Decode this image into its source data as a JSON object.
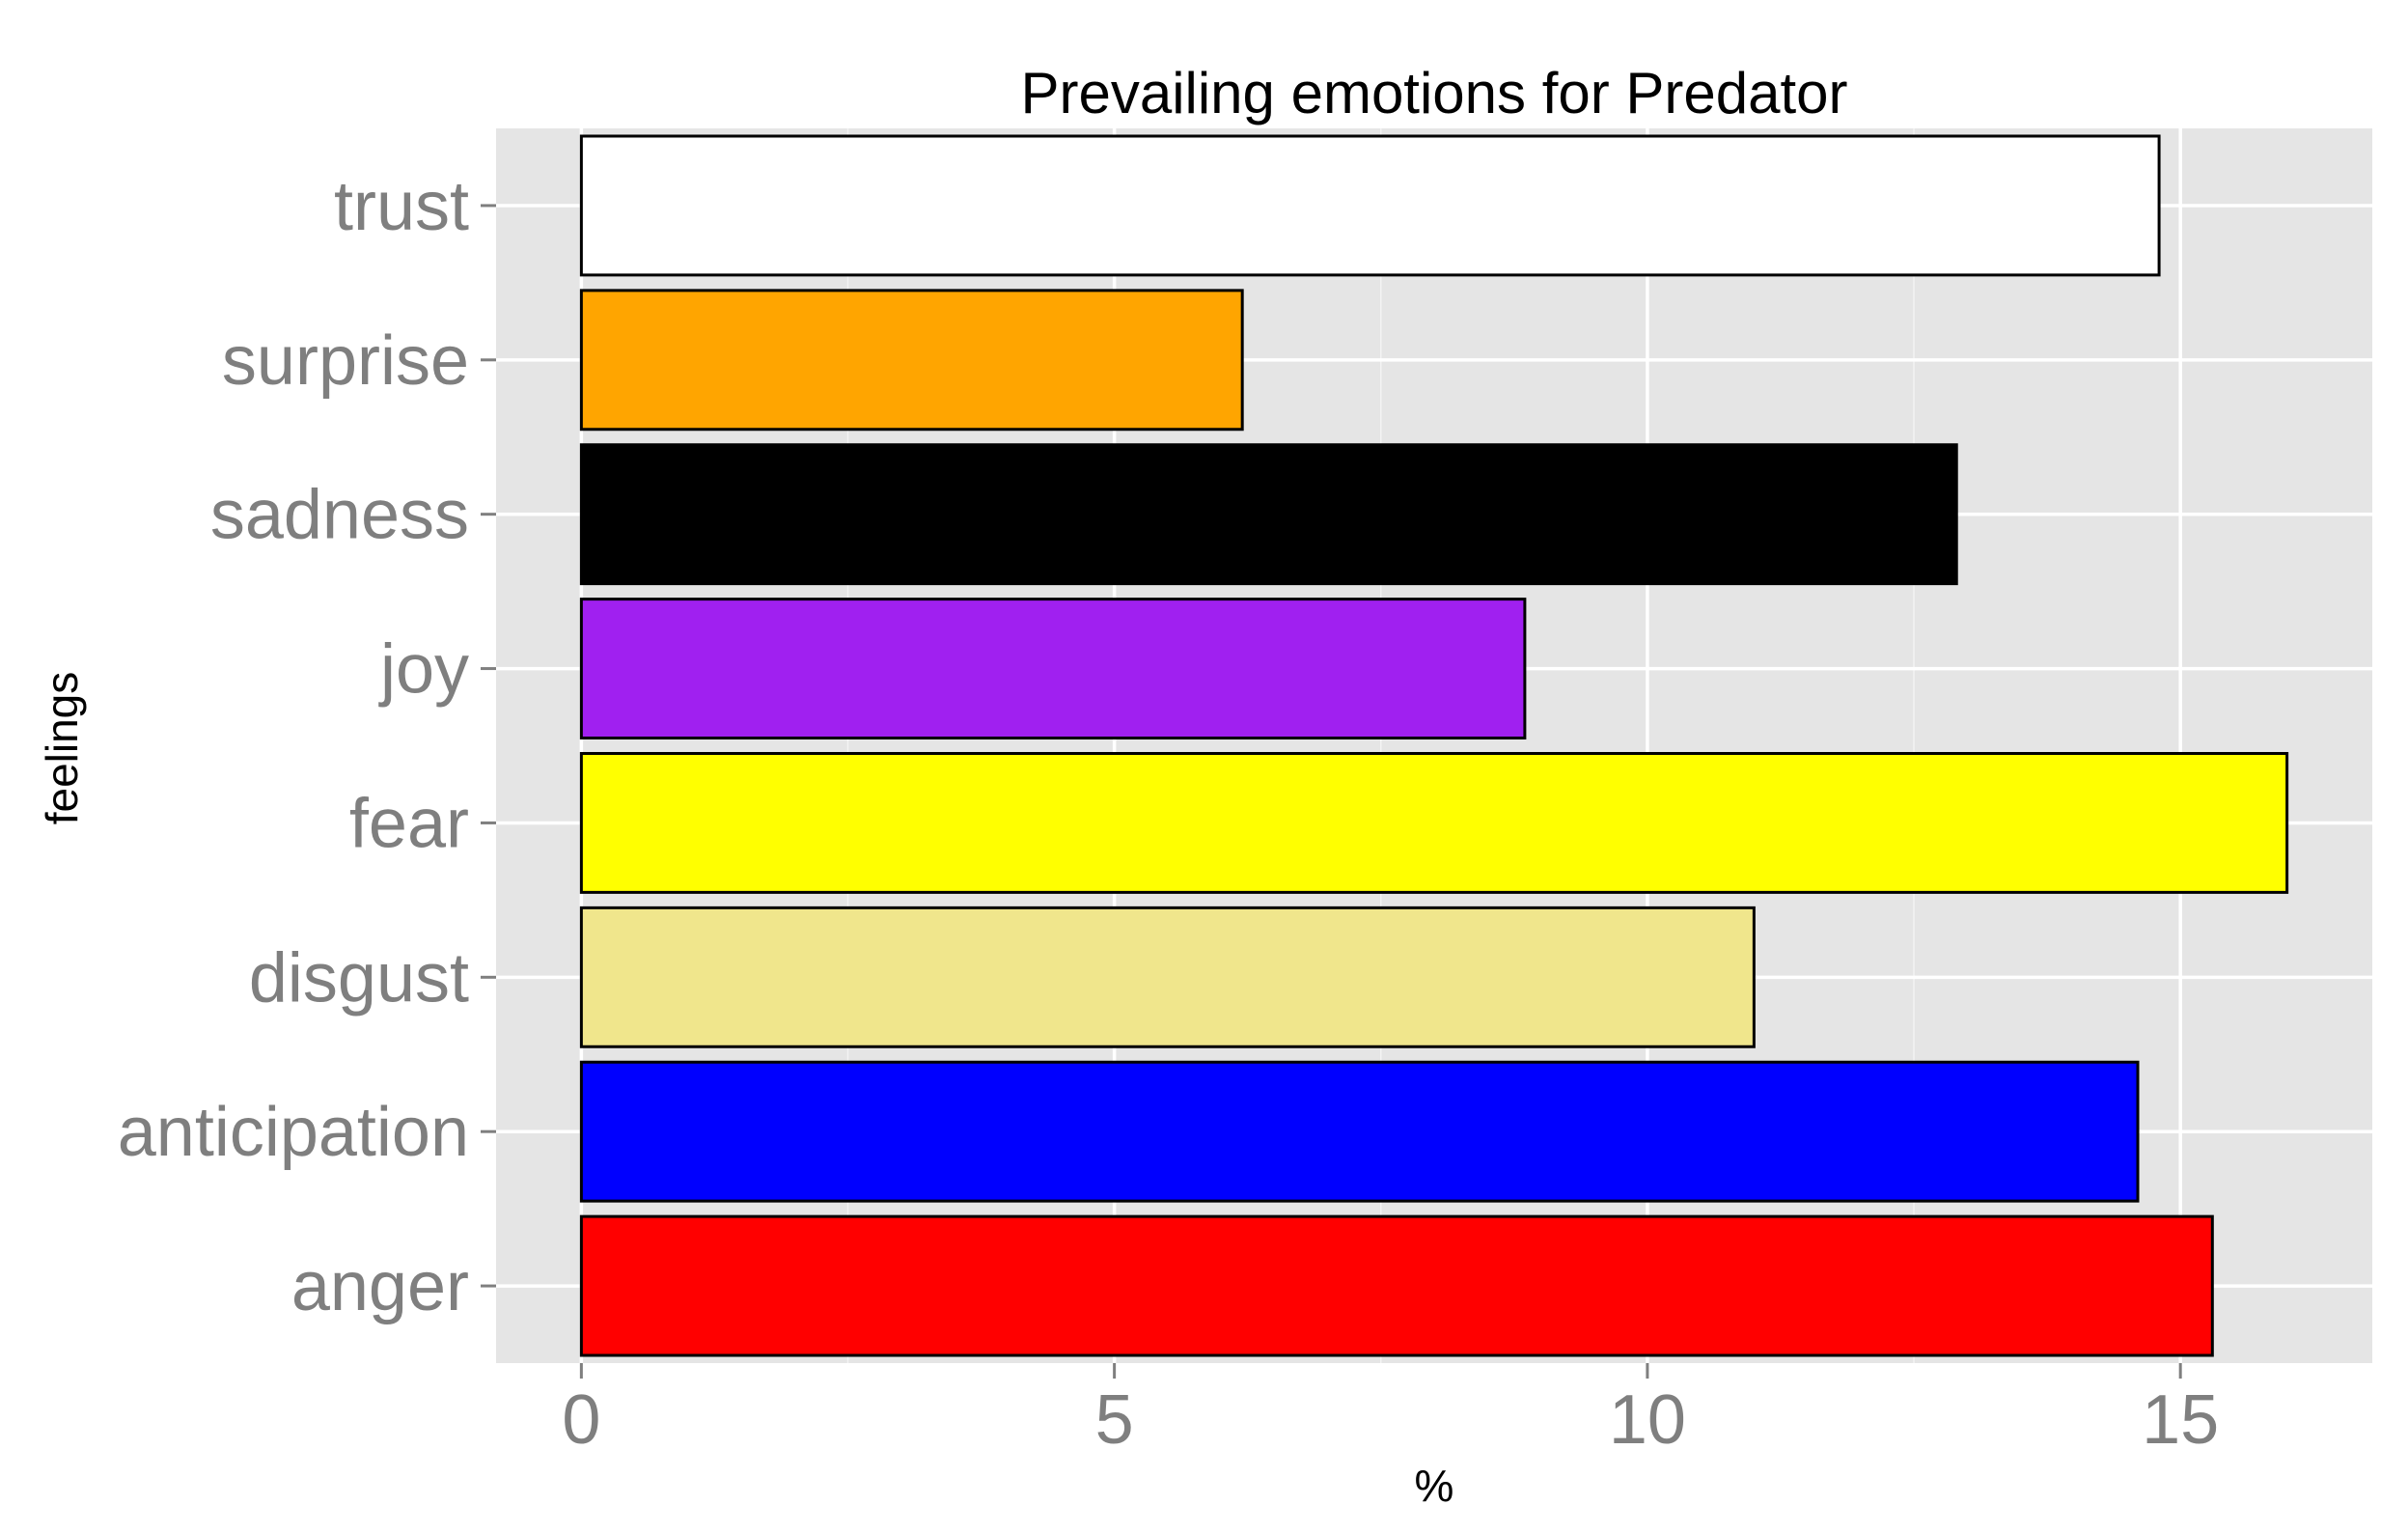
{
  "chart_data": {
    "type": "bar",
    "orientation": "horizontal",
    "title": "Prevailing emotions for Predator",
    "xlabel": "%",
    "ylabel": "feelings",
    "categories": [
      "anger",
      "anticipation",
      "disgust",
      "fear",
      "joy",
      "sadness",
      "surprise",
      "trust"
    ],
    "values": [
      15.3,
      14.6,
      11.0,
      16.0,
      8.85,
      12.9,
      6.2,
      14.8
    ],
    "bar_colors": [
      "#ff0000",
      "#0000ff",
      "#f0e68c",
      "#ffff00",
      "#a020f0",
      "#000000",
      "#ffa500",
      "#ffffff"
    ],
    "xlim": [
      -0.8,
      16.8
    ],
    "xticks": [
      0,
      5,
      10,
      15
    ],
    "xtick_labels": [
      "0",
      "5",
      "10",
      "15"
    ],
    "grid": true,
    "panel_background": "#e5e5e5",
    "grid_color": "#ffffff",
    "bar_outline": "#000000",
    "legend": "none"
  }
}
